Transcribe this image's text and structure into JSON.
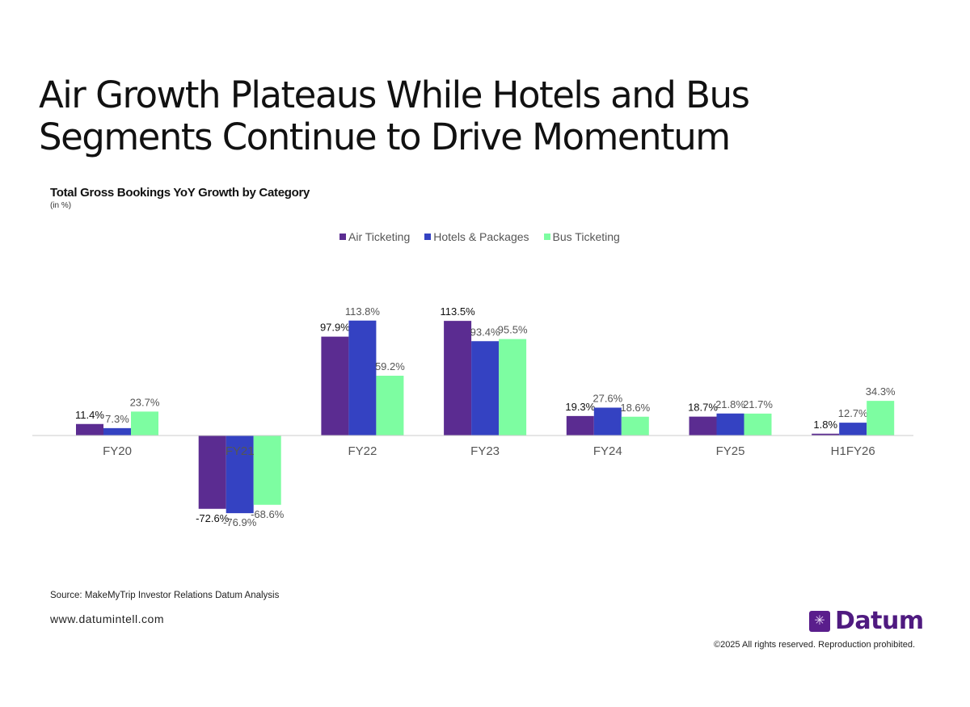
{
  "title": "Air Growth Plateaus While Hotels and Bus Segments Continue to Drive Momentum",
  "footer": {
    "source": "Source: MakeMyTrip Investor Relations Datum Analysis",
    "website": "www.datumintell.com",
    "logo_text": "Datum",
    "copyright": "©2025 All rights reserved. Reproduction prohibited."
  },
  "chart_data": {
    "type": "bar",
    "title": "Total Gross Bookings YoY Growth by Category",
    "subtitle": "(in %)",
    "categories": [
      "FY20",
      "FY21",
      "FY22",
      "FY23",
      "FY24",
      "FY25",
      "H1FY26"
    ],
    "series": [
      {
        "name": "Air Ticketing",
        "color": "#5b2c91",
        "values": [
          11.4,
          -72.6,
          97.9,
          113.5,
          19.3,
          18.7,
          1.8
        ]
      },
      {
        "name": "Hotels & Packages",
        "color": "#3442c2",
        "values": [
          7.3,
          -76.9,
          113.8,
          93.4,
          27.6,
          21.8,
          12.7
        ]
      },
      {
        "name": "Bus Ticketing",
        "color": "#7dfda1",
        "values": [
          23.7,
          -68.6,
          59.2,
          95.5,
          18.6,
          21.7,
          34.3
        ]
      }
    ],
    "unit": "%",
    "legend": "top-center",
    "grid": false
  }
}
